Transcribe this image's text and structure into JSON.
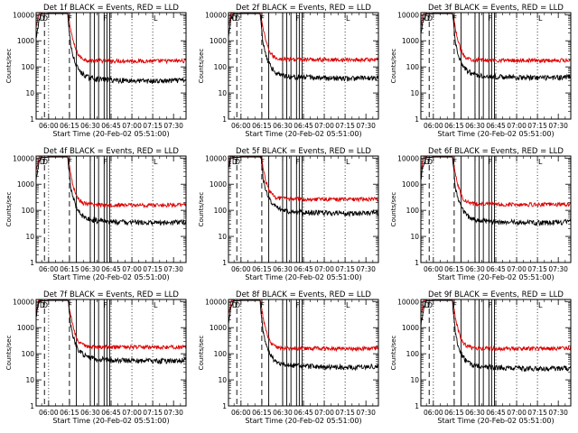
{
  "window": {
    "width": 640,
    "height": 480
  },
  "chart_data": [
    {
      "type": "line",
      "title": "Det 1f BLACK = Events, RED = LLD",
      "xlabel": "Start Time (20-Feb-02 05:51:00)",
      "ylabel": "Counts/sec",
      "x_ticks": [
        "06:00",
        "06:15",
        "06:30",
        "06:45",
        "07:00",
        "07:15",
        "07:30"
      ],
      "y_ticks": [
        "1",
        "10",
        "100",
        "1000",
        "10000"
      ],
      "y_log": true,
      "ylim": [
        1,
        12000
      ],
      "xlim_minutes": [
        -9,
        99
      ],
      "events_plateau": 30,
      "lld_plateau": 170,
      "series": [
        {
          "name": "BLACK = Events",
          "color": "#000000"
        },
        {
          "name": "RED = LLD",
          "color": "#dd0000"
        }
      ]
    },
    {
      "type": "line",
      "title": "Det 2f BLACK = Events, RED = LLD",
      "xlabel": "Start Time (20-Feb-02 05:51:00)",
      "ylabel": "Counts/sec",
      "x_ticks": [
        "06:00",
        "06:15",
        "06:30",
        "06:45",
        "07:00",
        "07:15",
        "07:30"
      ],
      "y_ticks": [
        "1",
        "10",
        "100",
        "1000",
        "10000"
      ],
      "y_log": true,
      "ylim": [
        1,
        12000
      ],
      "xlim_minutes": [
        -9,
        99
      ],
      "events_plateau": 38,
      "lld_plateau": 190,
      "series": [
        {
          "name": "BLACK = Events",
          "color": "#000000"
        },
        {
          "name": "RED = LLD",
          "color": "#dd0000"
        }
      ]
    },
    {
      "type": "line",
      "title": "Det 3f BLACK = Events, RED = LLD",
      "xlabel": "Start Time (20-Feb-02 05:51:00)",
      "ylabel": "Counts/sec",
      "x_ticks": [
        "06:00",
        "06:15",
        "06:30",
        "06:45",
        "07:00",
        "07:15",
        "07:30"
      ],
      "y_ticks": [
        "1",
        "10",
        "100",
        "1000",
        "10000"
      ],
      "y_log": true,
      "ylim": [
        1,
        12000
      ],
      "xlim_minutes": [
        -9,
        99
      ],
      "events_plateau": 40,
      "lld_plateau": 180,
      "series": [
        {
          "name": "BLACK = Events",
          "color": "#000000"
        },
        {
          "name": "RED = LLD",
          "color": "#dd0000"
        }
      ]
    },
    {
      "type": "line",
      "title": "Det 4f BLACK = Events, RED = LLD",
      "xlabel": "Start Time (20-Feb-02 05:51:00)",
      "ylabel": "Counts/sec",
      "x_ticks": [
        "06:00",
        "06:15",
        "06:30",
        "06:45",
        "07:00",
        "07:15",
        "07:30"
      ],
      "y_ticks": [
        "1",
        "10",
        "100",
        "1000",
        "10000"
      ],
      "y_log": true,
      "ylim": [
        1,
        12000
      ],
      "xlim_minutes": [
        -9,
        99
      ],
      "events_plateau": 35,
      "lld_plateau": 160,
      "series": [
        {
          "name": "BLACK = Events",
          "color": "#000000"
        },
        {
          "name": "RED = LLD",
          "color": "#dd0000"
        }
      ]
    },
    {
      "type": "line",
      "title": "Det 5f BLACK = Events, RED = LLD",
      "xlabel": "Start Time (20-Feb-02 05:51:00)",
      "ylabel": "Counts/sec",
      "x_ticks": [
        "06:00",
        "06:15",
        "06:30",
        "06:45",
        "07:00",
        "07:15",
        "07:30"
      ],
      "y_ticks": [
        "1",
        "10",
        "100",
        "1000",
        "10000"
      ],
      "y_log": true,
      "ylim": [
        1,
        12000
      ],
      "xlim_minutes": [
        -9,
        99
      ],
      "events_plateau": 80,
      "lld_plateau": 270,
      "series": [
        {
          "name": "BLACK = Events",
          "color": "#000000"
        },
        {
          "name": "RED = LLD",
          "color": "#dd0000"
        }
      ]
    },
    {
      "type": "line",
      "title": "Det 6f BLACK = Events, RED = LLD",
      "xlabel": "Start Time (20-Feb-02 05:51:00)",
      "ylabel": "Counts/sec",
      "x_ticks": [
        "06:00",
        "06:15",
        "06:30",
        "06:45",
        "07:00",
        "07:15",
        "07:30"
      ],
      "y_ticks": [
        "1",
        "10",
        "100",
        "1000",
        "10000"
      ],
      "y_log": true,
      "ylim": [
        1,
        12000
      ],
      "xlim_minutes": [
        -9,
        99
      ],
      "events_plateau": 35,
      "lld_plateau": 170,
      "series": [
        {
          "name": "BLACK = Events",
          "color": "#000000"
        },
        {
          "name": "RED = LLD",
          "color": "#dd0000"
        }
      ]
    },
    {
      "type": "line",
      "title": "Det 7f BLACK = Events, RED = LLD",
      "xlabel": "Start Time (20-Feb-02 05:51:00)",
      "ylabel": "Counts/sec",
      "x_ticks": [
        "06:00",
        "06:15",
        "06:30",
        "06:45",
        "07:00",
        "07:15",
        "07:30"
      ],
      "y_ticks": [
        "1",
        "10",
        "100",
        "1000",
        "10000"
      ],
      "y_log": true,
      "ylim": [
        1,
        12000
      ],
      "xlim_minutes": [
        -9,
        99
      ],
      "events_plateau": 55,
      "lld_plateau": 180,
      "series": [
        {
          "name": "BLACK = Events",
          "color": "#000000"
        },
        {
          "name": "RED = LLD",
          "color": "#dd0000"
        }
      ]
    },
    {
      "type": "line",
      "title": "Det 8f BLACK = Events, RED = LLD",
      "xlabel": "Start Time (20-Feb-02 05:51:00)",
      "ylabel": "Counts/sec",
      "x_ticks": [
        "06:00",
        "06:15",
        "06:30",
        "06:45",
        "07:00",
        "07:15",
        "07:30"
      ],
      "y_ticks": [
        "1",
        "10",
        "100",
        "1000",
        "10000"
      ],
      "y_log": true,
      "ylim": [
        1,
        12000
      ],
      "xlim_minutes": [
        -9,
        99
      ],
      "events_plateau": 32,
      "lld_plateau": 160,
      "series": [
        {
          "name": "BLACK = Events",
          "color": "#000000"
        },
        {
          "name": "RED = LLD",
          "color": "#dd0000"
        }
      ]
    },
    {
      "type": "line",
      "title": "Det 9f BLACK = Events, RED = LLD",
      "xlabel": "Start Time (20-Feb-02 05:51:00)",
      "ylabel": "Counts/sec",
      "x_ticks": [
        "06:00",
        "06:15",
        "06:30",
        "06:45",
        "07:00",
        "07:15",
        "07:30"
      ],
      "y_ticks": [
        "1",
        "10",
        "100",
        "1000",
        "10000"
      ],
      "y_log": true,
      "ylim": [
        1,
        12000
      ],
      "xlim_minutes": [
        -9,
        99
      ],
      "events_plateau": 28,
      "lld_plateau": 160,
      "series": [
        {
          "name": "BLACK = Events",
          "color": "#000000"
        },
        {
          "name": "RED = LLD",
          "color": "#dd0000"
        }
      ]
    }
  ],
  "shared": {
    "x_minutes": [
      -9,
      -7,
      -5,
      -3,
      0,
      2,
      4,
      6,
      8,
      10,
      12,
      14,
      16,
      18,
      20,
      22,
      24,
      26,
      28,
      30,
      35,
      40,
      45,
      50,
      55,
      60,
      65,
      70,
      75,
      80,
      85,
      90,
      95,
      99
    ],
    "events_profile": [
      2000,
      9000,
      11000,
      10500,
      11000,
      11000,
      11000,
      11000,
      11000,
      11000,
      11000,
      11000,
      900,
      330,
      170,
      110,
      85,
      72,
      62,
      57,
      52,
      50,
      48,
      47,
      46,
      45,
      44,
      44,
      43,
      43,
      44,
      45,
      46,
      47
    ],
    "lld_profile": [
      3000,
      11000,
      11000,
      10500,
      11000,
      11000,
      11000,
      11000,
      11000,
      11000,
      11000,
      11000,
      2500,
      800,
      400,
      260,
      210,
      190,
      180,
      175,
      172,
      170,
      168,
      168,
      168,
      167,
      166,
      166,
      165,
      165,
      166,
      167,
      168,
      170
    ],
    "dashed_minutes": [
      -3,
      15
    ],
    "dotted_minutes": [
      0,
      30,
      45,
      60,
      75
    ],
    "solid_minutes": [
      20,
      30,
      33,
      36,
      40,
      42,
      44
    ],
    "markers": [
      {
        "text": "D",
        "minute": -4.5
      },
      {
        "text": "D",
        "minute": -2.5
      },
      {
        "text": "F",
        "minute": 15.5
      },
      {
        "text": "F",
        "minute": 41
      },
      {
        "text": "L",
        "minute": 77
      }
    ]
  }
}
